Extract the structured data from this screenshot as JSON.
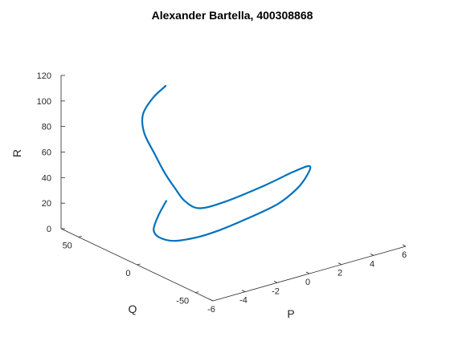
{
  "chart_data": {
    "type": "line",
    "title": "Alexander Bartella, 400308868",
    "xlabel": "P",
    "ylabel": "Q",
    "zlabel": "R",
    "xticks": [
      "-6",
      "-4",
      "-2",
      "0",
      "2",
      "4",
      "6"
    ],
    "yticks": [
      "-50",
      "0",
      "50"
    ],
    "zticks": [
      "0",
      "20",
      "40",
      "60",
      "80",
      "100",
      "120"
    ],
    "xlim": [
      -6,
      6
    ],
    "ylim": [
      -65,
      65
    ],
    "zlim": [
      0,
      120
    ],
    "grid": false,
    "series": [
      {
        "color": "#0072BD",
        "points": [
          [
            -3.6,
            8.0,
            38.0
          ],
          [
            -4.6,
            1.0,
            33.0
          ],
          [
            -5.4,
            -6.0,
            28.0
          ],
          [
            -5.5,
            -12.0,
            25.0
          ],
          [
            -5.0,
            -18.0,
            23.0
          ],
          [
            -3.8,
            -22.0,
            23.5
          ],
          [
            -2.6,
            -24.0,
            25.5
          ],
          [
            -1.0,
            -25.0,
            29.0
          ],
          [
            1.0,
            -24.0,
            33.0
          ],
          [
            2.5,
            -20.0,
            38.0
          ],
          [
            3.5,
            -15.0,
            43.0
          ],
          [
            4.0,
            -10.0,
            46.0
          ],
          [
            3.2,
            -7.0,
            43.0
          ],
          [
            1.5,
            -6.0,
            38.0
          ],
          [
            -1.0,
            -6.0,
            34.0
          ],
          [
            -2.5,
            -5.0,
            34.0
          ],
          [
            -3.4,
            -5.0,
            43.0
          ],
          [
            -4.0,
            -5.0,
            55.0
          ],
          [
            -4.5,
            -3.0,
            68.0
          ],
          [
            -5.0,
            -2.0,
            83.0
          ],
          [
            -5.4,
            2.0,
            100.0
          ],
          [
            -5.2,
            6.0,
            112.0
          ],
          [
            -4.3,
            10.0,
            120.0
          ],
          [
            -3.2,
            14.0,
            124.0
          ]
        ]
      }
    ]
  }
}
